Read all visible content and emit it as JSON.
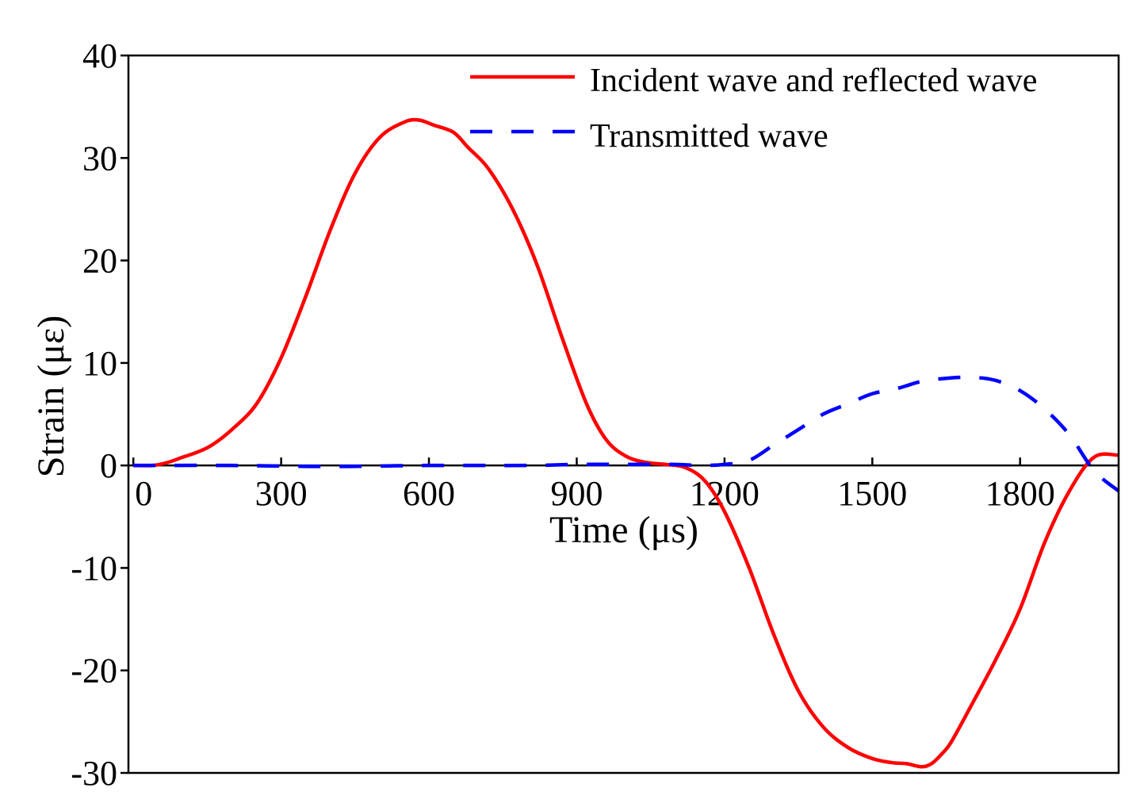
{
  "chart_data": {
    "type": "line",
    "title": "",
    "xlabel": "Time (μs)",
    "ylabel": "Strain (με)",
    "xlim": [
      -10,
      2000
    ],
    "ylim": [
      -30,
      40
    ],
    "xticks": [
      0,
      300,
      600,
      900,
      1200,
      1500,
      1800
    ],
    "xtick_labels": [
      "0",
      "300",
      "600",
      "900",
      "1200",
      "1500",
      "1800"
    ],
    "yticks": [
      40,
      30,
      20,
      10,
      0,
      -10,
      -20,
      -30
    ],
    "ytick_labels": [
      "40",
      "30",
      "20",
      "10",
      "0",
      "-10",
      "-20",
      "-30"
    ],
    "grid": false,
    "legend_position": "top-right",
    "series": [
      {
        "name": "Incident wave and reflected wave",
        "style": "solid",
        "color": "#ff0000",
        "x": [
          0,
          40,
          70,
          100,
          130,
          160,
          200,
          250,
          300,
          350,
          400,
          450,
          500,
          550,
          580,
          610,
          650,
          680,
          720,
          770,
          820,
          870,
          920,
          960,
          1000,
          1040,
          1080,
          1120,
          1160,
          1200,
          1250,
          1300,
          1350,
          1400,
          1450,
          1500,
          1540,
          1570,
          1600,
          1620,
          1640,
          1660,
          1700,
          1750,
          1800,
          1850,
          1900,
          1950,
          2000
        ],
        "y": [
          0,
          0,
          0.3,
          0.8,
          1.3,
          2.0,
          3.5,
          6.0,
          10.5,
          16.5,
          23.0,
          28.5,
          32.0,
          33.5,
          33.7,
          33.2,
          32.5,
          31.0,
          29.0,
          25.0,
          19.5,
          12.5,
          6.0,
          2.5,
          0.9,
          0.3,
          0.1,
          -0.2,
          -1.5,
          -4.5,
          -10.0,
          -16.5,
          -22.0,
          -25.5,
          -27.5,
          -28.6,
          -29.0,
          -29.1,
          -29.4,
          -29.1,
          -28.2,
          -27.0,
          -23.5,
          -19.0,
          -14.0,
          -7.5,
          -2.5,
          0.8,
          1.0
        ]
      },
      {
        "name": "Transmitted wave",
        "style": "dashed",
        "color": "#0000ff",
        "x": [
          0,
          200,
          400,
          600,
          800,
          900,
          1000,
          1100,
          1150,
          1200,
          1250,
          1300,
          1350,
          1400,
          1450,
          1500,
          1550,
          1600,
          1650,
          1700,
          1750,
          1800,
          1850,
          1900,
          1950,
          2000
        ],
        "y": [
          0,
          0,
          -0.1,
          0,
          0,
          0.1,
          0.1,
          0.1,
          0,
          0.1,
          0.5,
          2.0,
          3.5,
          5.0,
          6.0,
          7.0,
          7.5,
          8.2,
          8.5,
          8.6,
          8.3,
          7.3,
          5.5,
          3.0,
          -0.5,
          -2.5
        ]
      }
    ]
  }
}
